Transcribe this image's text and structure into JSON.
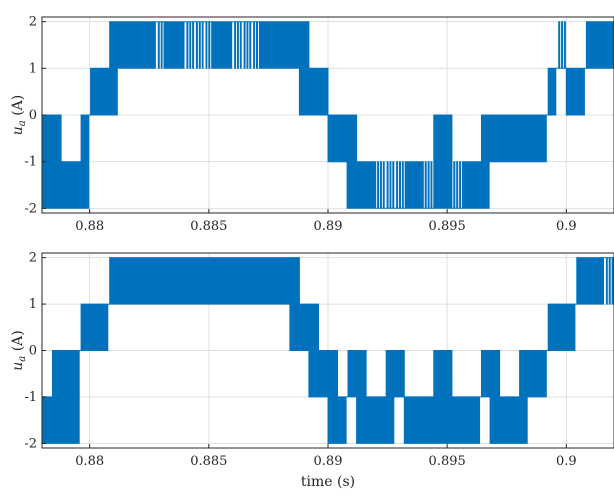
{
  "chart_data": [
    {
      "type": "line",
      "title": "",
      "xlabel": "",
      "ylabel": "u_a (A)",
      "ylabel_main": "u",
      "ylabel_sub": "a",
      "ylabel_unit": " (A)",
      "xlim": [
        0.878,
        0.902
      ],
      "ylim": [
        -2.1,
        2.1
      ],
      "xticks": [
        0.88,
        0.885,
        0.89,
        0.895,
        0.9
      ],
      "xtick_labels": [
        "0.88",
        "0.885",
        "0.89",
        "0.895",
        "0.9"
      ],
      "yticks": [
        -2,
        -1,
        0,
        1,
        2
      ],
      "ytick_labels": [
        "-2",
        "-1",
        "0",
        "1",
        "2"
      ],
      "grid": true,
      "color": "#0072BD",
      "series": [
        {
          "x": [
            0.878,
            0.8784,
            0.8788,
            0.8792,
            0.8796,
            0.88,
            0.8804,
            0.8808,
            0.8812,
            0.8816,
            0.882,
            0.8824,
            0.8828,
            0.8832,
            0.8836,
            0.884,
            0.8844,
            0.8848,
            0.8852,
            0.8856,
            0.886,
            0.8864,
            0.8868,
            0.8872,
            0.8876,
            0.888,
            0.8884,
            0.8888,
            0.8892,
            0.8896,
            0.89,
            0.8904,
            0.8908,
            0.8912,
            0.8916,
            0.892,
            0.8924,
            0.8928,
            0.8932,
            0.8936,
            0.894,
            0.8944,
            0.8948,
            0.8952,
            0.8956,
            0.896,
            0.8964,
            0.8968,
            0.8972,
            0.8976,
            0.898,
            0.8984,
            0.8988,
            0.8992,
            0.8996,
            0.9,
            0.9004,
            0.9008,
            0.9012,
            0.9016,
            0.902
          ],
          "y": [
            -2,
            0,
            -2,
            -1,
            -2,
            0,
            1,
            0,
            2,
            1,
            2,
            1,
            2,
            2,
            1,
            2,
            2,
            2,
            2,
            1,
            2,
            2,
            2,
            2,
            1,
            2,
            1,
            2,
            0,
            1,
            0,
            -1,
            0,
            -2,
            -1,
            -2,
            -2,
            -2,
            -2,
            -1,
            -2,
            -2,
            0,
            -2,
            -2,
            -1,
            -2,
            0,
            -1,
            0,
            -1,
            0,
            -1,
            0,
            1,
            1,
            0,
            1,
            2,
            1,
            2
          ]
        }
      ]
    },
    {
      "type": "line",
      "title": "",
      "xlabel": "time (s)",
      "ylabel": "u_a (A)",
      "ylabel_main": "u",
      "ylabel_sub": "a",
      "ylabel_unit": " (A)",
      "xlim": [
        0.878,
        0.902
      ],
      "ylim": [
        -2.1,
        2.1
      ],
      "xticks": [
        0.88,
        0.885,
        0.89,
        0.895,
        0.9
      ],
      "xtick_labels": [
        "0.88",
        "0.885",
        "0.89",
        "0.895",
        "0.9"
      ],
      "yticks": [
        -2,
        -1,
        0,
        1,
        2
      ],
      "ytick_labels": [
        "-2",
        "-1",
        "0",
        "1",
        "2"
      ],
      "grid": true,
      "color": "#0072BD",
      "series": [
        {
          "x": [
            0.878,
            0.8784,
            0.8788,
            0.8792,
            0.8796,
            0.88,
            0.8804,
            0.8808,
            0.8812,
            0.8816,
            0.882,
            0.8824,
            0.8828,
            0.8832,
            0.8836,
            0.884,
            0.8844,
            0.8848,
            0.8852,
            0.8856,
            0.886,
            0.8864,
            0.8868,
            0.8872,
            0.8876,
            0.888,
            0.8884,
            0.8888,
            0.8892,
            0.8896,
            0.89,
            0.8904,
            0.8908,
            0.8912,
            0.8916,
            0.892,
            0.8924,
            0.8928,
            0.8932,
            0.8936,
            0.894,
            0.8944,
            0.8948,
            0.8952,
            0.8956,
            0.896,
            0.8964,
            0.8968,
            0.8972,
            0.8976,
            0.898,
            0.8984,
            0.8988,
            0.8992,
            0.8996,
            0.9,
            0.9004,
            0.9008,
            0.9012,
            0.9016,
            0.902
          ],
          "y": [
            -1,
            -2,
            0,
            -2,
            0,
            1,
            0,
            1,
            2,
            1,
            2,
            1,
            2,
            1,
            2,
            1,
            2,
            1,
            2,
            1,
            2,
            1,
            2,
            1,
            2,
            1,
            2,
            0,
            1,
            -1,
            0,
            -2,
            -1,
            0,
            -2,
            -1,
            -2,
            0,
            -1,
            -2,
            -1,
            -2,
            0,
            -2,
            -1,
            -2,
            -1,
            0,
            -2,
            -1,
            -2,
            0,
            -1,
            0,
            1,
            0,
            1,
            2,
            1,
            2,
            2
          ]
        }
      ]
    }
  ]
}
